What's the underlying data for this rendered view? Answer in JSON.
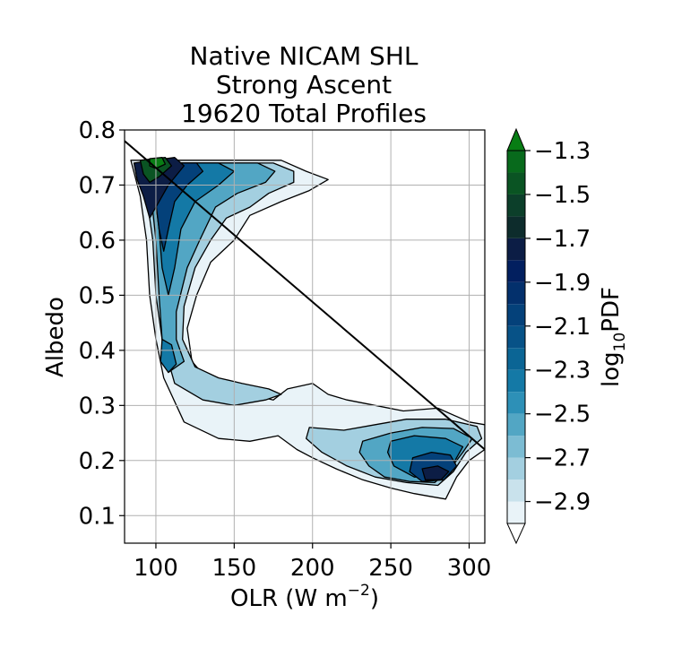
{
  "chart_data": {
    "type": "contour",
    "title_lines": [
      "Native NICAM SHL",
      "Strong Ascent",
      "19620 Total Profiles"
    ],
    "xlabel": "OLR (W m",
    "xlabel_sup": "−2",
    "xlabel_close": ")",
    "ylabel": "Albedo",
    "xlim": [
      80,
      310
    ],
    "ylim": [
      0.05,
      0.8
    ],
    "xticks": [
      100,
      150,
      200,
      250,
      300
    ],
    "yticks": [
      0.1,
      0.2,
      0.3,
      0.4,
      0.5,
      0.6,
      0.7,
      0.8
    ],
    "xtick_labels": [
      "100",
      "150",
      "200",
      "250",
      "300"
    ],
    "ytick_labels": [
      "0.1",
      "0.2",
      "0.3",
      "0.4",
      "0.5",
      "0.6",
      "0.7",
      "0.8"
    ],
    "grid": true,
    "reference_line": {
      "x": [
        80,
        310
      ],
      "y": [
        0.78,
        0.22
      ]
    },
    "colorbar": {
      "label_main": "log",
      "label_sub": "10",
      "label_rest": "PDF",
      "levels": [
        -3.0,
        -2.9,
        -2.8,
        -2.7,
        -2.6,
        -2.5,
        -2.4,
        -2.3,
        -2.2,
        -2.1,
        -2.0,
        -1.9,
        -1.8,
        -1.7,
        -1.6,
        -1.5,
        -1.4,
        -1.3
      ],
      "tick_values": [
        -2.9,
        -2.7,
        -2.5,
        -2.3,
        -2.1,
        -1.9,
        -1.7,
        -1.5,
        -1.3
      ],
      "tick_labels": [
        "−2.9",
        "−2.7",
        "−2.5",
        "−2.3",
        "−2.1",
        "−1.9",
        "−1.7",
        "−1.5",
        "−1.3"
      ],
      "colors": [
        "#e9f3f8",
        "#c9e2ec",
        "#a3cfe0",
        "#7cbcd3",
        "#52a6c4",
        "#2d90b7",
        "#1479a6",
        "#0b6595",
        "#075287",
        "#04417a",
        "#03306c",
        "#021f5f",
        "#0c1d45",
        "#0d2c2c",
        "#0c3f2a",
        "#0a5423",
        "#086a1c",
        "#087d14"
      ],
      "extend": "both",
      "under_color": "#ffffff",
      "over_color": "#087d14"
    },
    "regions": [
      {
        "level": -2.95,
        "poly": [
          [
            84,
            0.745
          ],
          [
            180,
            0.745
          ],
          [
            196,
            0.725
          ],
          [
            210,
            0.71
          ],
          [
            198,
            0.69
          ],
          [
            180,
            0.67
          ],
          [
            160,
            0.645
          ],
          [
            150,
            0.6
          ],
          [
            135,
            0.56
          ],
          [
            126,
            0.5
          ],
          [
            120,
            0.44
          ],
          [
            123,
            0.38
          ],
          [
            132,
            0.35
          ],
          [
            145,
            0.335
          ],
          [
            160,
            0.32
          ],
          [
            175,
            0.31
          ],
          [
            184,
            0.33
          ],
          [
            200,
            0.34
          ],
          [
            210,
            0.32
          ],
          [
            222,
            0.31
          ],
          [
            240,
            0.3
          ],
          [
            258,
            0.29
          ],
          [
            280,
            0.295
          ],
          [
            300,
            0.27
          ],
          [
            310,
            0.265
          ],
          [
            310,
            0.22
          ],
          [
            300,
            0.2
          ],
          [
            292,
            0.17
          ],
          [
            285,
            0.13
          ],
          [
            275,
            0.135
          ],
          [
            265,
            0.14
          ],
          [
            250,
            0.15
          ],
          [
            232,
            0.165
          ],
          [
            215,
            0.185
          ],
          [
            200,
            0.205
          ],
          [
            190,
            0.22
          ],
          [
            178,
            0.245
          ],
          [
            160,
            0.235
          ],
          [
            140,
            0.24
          ],
          [
            118,
            0.27
          ],
          [
            105,
            0.35
          ],
          [
            100,
            0.42
          ],
          [
            96,
            0.5
          ],
          [
            94,
            0.6
          ],
          [
            90,
            0.68
          ]
        ]
      },
      {
        "level": -2.75,
        "poly": [
          [
            90,
            0.74
          ],
          [
            175,
            0.74
          ],
          [
            188,
            0.725
          ],
          [
            188,
            0.705
          ],
          [
            172,
            0.685
          ],
          [
            160,
            0.66
          ],
          [
            145,
            0.64
          ],
          [
            135,
            0.6
          ],
          [
            125,
            0.55
          ],
          [
            118,
            0.48
          ],
          [
            117,
            0.42
          ],
          [
            125,
            0.37
          ],
          [
            140,
            0.35
          ],
          [
            155,
            0.34
          ],
          [
            172,
            0.33
          ],
          [
            180,
            0.32
          ],
          [
            170,
            0.31
          ],
          [
            150,
            0.3
          ],
          [
            130,
            0.31
          ],
          [
            112,
            0.34
          ],
          [
            104,
            0.42
          ],
          [
            100,
            0.5
          ],
          [
            98,
            0.6
          ],
          [
            94,
            0.68
          ]
        ]
      },
      {
        "level": -2.75,
        "poly": [
          [
            198,
            0.26
          ],
          [
            220,
            0.255
          ],
          [
            240,
            0.265
          ],
          [
            260,
            0.275
          ],
          [
            285,
            0.275
          ],
          [
            305,
            0.262
          ],
          [
            308,
            0.24
          ],
          [
            298,
            0.215
          ],
          [
            290,
            0.18
          ],
          [
            280,
            0.155
          ],
          [
            260,
            0.16
          ],
          [
            240,
            0.17
          ],
          [
            222,
            0.19
          ],
          [
            206,
            0.215
          ],
          [
            196,
            0.24
          ]
        ]
      },
      {
        "level": -2.55,
        "poly": [
          [
            94,
            0.74
          ],
          [
            165,
            0.74
          ],
          [
            176,
            0.725
          ],
          [
            170,
            0.705
          ],
          [
            152,
            0.685
          ],
          [
            138,
            0.66
          ],
          [
            128,
            0.6
          ],
          [
            120,
            0.55
          ],
          [
            113,
            0.47
          ],
          [
            113,
            0.42
          ],
          [
            118,
            0.38
          ],
          [
            108,
            0.36
          ],
          [
            104,
            0.42
          ],
          [
            102,
            0.5
          ],
          [
            100,
            0.6
          ],
          [
            97,
            0.68
          ]
        ]
      },
      {
        "level": -2.55,
        "poly": [
          [
            232,
            0.235
          ],
          [
            250,
            0.25
          ],
          [
            270,
            0.26
          ],
          [
            290,
            0.258
          ],
          [
            302,
            0.24
          ],
          [
            296,
            0.215
          ],
          [
            288,
            0.185
          ],
          [
            278,
            0.16
          ],
          [
            262,
            0.162
          ],
          [
            246,
            0.17
          ],
          [
            236,
            0.19
          ],
          [
            230,
            0.215
          ]
        ]
      },
      {
        "level": -2.35,
        "poly": [
          [
            96,
            0.74
          ],
          [
            140,
            0.74
          ],
          [
            150,
            0.725
          ],
          [
            140,
            0.7
          ],
          [
            125,
            0.67
          ],
          [
            116,
            0.62
          ],
          [
            112,
            0.55
          ],
          [
            108,
            0.5
          ],
          [
            104,
            0.55
          ],
          [
            102,
            0.62
          ],
          [
            99,
            0.69
          ]
        ]
      },
      {
        "level": -2.35,
        "poly": [
          [
            104,
            0.42
          ],
          [
            110,
            0.41
          ],
          [
            113,
            0.375
          ],
          [
            108,
            0.36
          ],
          [
            103,
            0.38
          ]
        ]
      },
      {
        "level": -2.35,
        "poly": [
          [
            250,
            0.235
          ],
          [
            265,
            0.245
          ],
          [
            285,
            0.24
          ],
          [
            296,
            0.225
          ],
          [
            290,
            0.195
          ],
          [
            280,
            0.17
          ],
          [
            265,
            0.17
          ],
          [
            252,
            0.19
          ],
          [
            248,
            0.215
          ]
        ]
      },
      {
        "level": -2.05,
        "poly": [
          [
            97,
            0.74
          ],
          [
            126,
            0.74
          ],
          [
            130,
            0.725
          ],
          [
            120,
            0.7
          ],
          [
            112,
            0.67
          ],
          [
            108,
            0.62
          ],
          [
            105,
            0.58
          ],
          [
            102,
            0.62
          ],
          [
            99,
            0.69
          ]
        ]
      },
      {
        "level": -2.05,
        "poly": [
          [
            264,
            0.205
          ],
          [
            276,
            0.215
          ],
          [
            288,
            0.21
          ],
          [
            292,
            0.19
          ],
          [
            284,
            0.165
          ],
          [
            270,
            0.162
          ],
          [
            262,
            0.18
          ]
        ]
      },
      {
        "level": -1.75,
        "poly": [
          [
            86,
            0.74
          ],
          [
            112,
            0.75
          ],
          [
            118,
            0.735
          ],
          [
            108,
            0.7
          ],
          [
            102,
            0.67
          ],
          [
            96,
            0.64
          ],
          [
            92,
            0.68
          ],
          [
            88,
            0.71
          ]
        ]
      },
      {
        "level": -1.75,
        "poly": [
          [
            270,
            0.185
          ],
          [
            280,
            0.19
          ],
          [
            287,
            0.18
          ],
          [
            282,
            0.165
          ],
          [
            272,
            0.165
          ]
        ]
      },
      {
        "level": -1.45,
        "poly": [
          [
            90,
            0.745
          ],
          [
            106,
            0.75
          ],
          [
            110,
            0.735
          ],
          [
            102,
            0.715
          ],
          [
            96,
            0.705
          ],
          [
            92,
            0.72
          ]
        ]
      },
      {
        "level": -1.3,
        "poly": [
          [
            96,
            0.748
          ],
          [
            104,
            0.75
          ],
          [
            106,
            0.738
          ],
          [
            100,
            0.73
          ],
          [
            96,
            0.735
          ]
        ]
      }
    ]
  }
}
